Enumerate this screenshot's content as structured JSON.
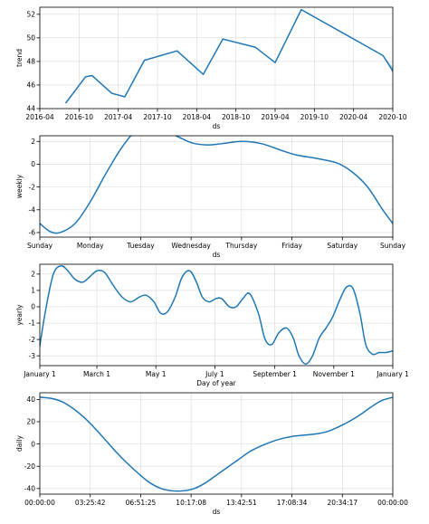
{
  "chart_data": [
    {
      "id": "trend",
      "type": "line",
      "title": "",
      "xlabel": "ds",
      "ylabel": "trend",
      "grid": true,
      "xlim": [
        0,
        54
      ],
      "ylim": [
        44,
        52.6
      ],
      "x_ticks": [
        {
          "v": 0,
          "label": "2016-04"
        },
        {
          "v": 6,
          "label": "2016-10"
        },
        {
          "v": 12,
          "label": "2017-04"
        },
        {
          "v": 18,
          "label": "2017-10"
        },
        {
          "v": 24,
          "label": "2018-04"
        },
        {
          "v": 30,
          "label": "2018-10"
        },
        {
          "v": 36,
          "label": "2019-04"
        },
        {
          "v": 42,
          "label": "2019-10"
        },
        {
          "v": 48,
          "label": "2020-04"
        },
        {
          "v": 54,
          "label": "2020-10"
        }
      ],
      "y_ticks": [
        44,
        46,
        48,
        50,
        52
      ],
      "series": [
        {
          "x": [
            4,
            7,
            8,
            11,
            13,
            16,
            21,
            25,
            28,
            33,
            36,
            40,
            52.5,
            56.5
          ],
          "y": [
            44.5,
            46.7,
            46.8,
            45.3,
            45.0,
            48.1,
            48.9,
            46.9,
            49.9,
            49.2,
            47.9,
            52.4,
            48.5,
            45.0
          ]
        }
      ],
      "uncertainty": {
        "x": [
          52.5,
          55.0,
          57.0
        ],
        "upper": [
          48.5,
          46.9,
          46.0
        ],
        "lower": [
          48.5,
          46.0,
          44.2
        ]
      }
    },
    {
      "id": "weekly",
      "type": "line",
      "title": "",
      "xlabel": "ds",
      "ylabel": "weekly",
      "grid": true,
      "xlim": [
        0,
        7
      ],
      "ylim": [
        -6.4,
        2.5
      ],
      "x_ticks": [
        {
          "v": 0,
          "label": "Sunday"
        },
        {
          "v": 1,
          "label": "Monday"
        },
        {
          "v": 2,
          "label": "Tuesday"
        },
        {
          "v": 3,
          "label": "Wednesday"
        },
        {
          "v": 4,
          "label": "Thursday"
        },
        {
          "v": 5,
          "label": "Friday"
        },
        {
          "v": 6,
          "label": "Saturday"
        },
        {
          "v": 7,
          "label": "Sunday"
        }
      ],
      "y_ticks": [
        -6,
        -4,
        -2,
        0,
        2
      ],
      "series": [
        {
          "x": [
            0,
            0.2,
            0.4,
            0.7,
            1.0,
            1.3,
            1.6,
            1.85,
            2.1,
            2.35,
            2.7,
            3.0,
            3.3,
            3.6,
            4.0,
            4.4,
            4.8,
            5.1,
            5.5,
            5.9,
            6.2,
            6.5,
            6.8,
            7.0
          ],
          "y": [
            -5.2,
            -5.9,
            -6.0,
            -5.2,
            -3.3,
            -0.9,
            1.3,
            2.7,
            3.3,
            3.1,
            2.5,
            1.9,
            1.7,
            1.8,
            2.0,
            1.8,
            1.2,
            0.8,
            0.5,
            0.1,
            -0.7,
            -2.0,
            -4.0,
            -5.2
          ]
        }
      ]
    },
    {
      "id": "yearly",
      "type": "line",
      "title": "",
      "xlabel": "Day of year",
      "ylabel": "yearly",
      "grid": true,
      "xlim": [
        0,
        365
      ],
      "ylim": [
        -3.6,
        2.6
      ],
      "x_ticks": [
        {
          "v": 0,
          "label": "January 1"
        },
        {
          "v": 59,
          "label": "March 1"
        },
        {
          "v": 120,
          "label": "May 1"
        },
        {
          "v": 181,
          "label": "July 1"
        },
        {
          "v": 243,
          "label": "September 1"
        },
        {
          "v": 304,
          "label": "November 1"
        },
        {
          "v": 365,
          "label": "January 1"
        }
      ],
      "y_ticks": [
        -3,
        -2,
        -1,
        0,
        1,
        2
      ],
      "series": [
        {
          "x": [
            0,
            6,
            14,
            22,
            29,
            36,
            44,
            51,
            59,
            67,
            76,
            85,
            94,
            103,
            110,
            118,
            125,
            132,
            140,
            147,
            155,
            162,
            168,
            175,
            182,
            188,
            196,
            203,
            210,
            217,
            226,
            233,
            240,
            247,
            255,
            262,
            268,
            275,
            282,
            289,
            296,
            303,
            310,
            317,
            324,
            331,
            337,
            344,
            351,
            358,
            365
          ],
          "y": [
            -2.4,
            -0.2,
            2.0,
            2.5,
            2.2,
            1.7,
            1.5,
            1.8,
            2.2,
            2.1,
            1.3,
            0.6,
            0.3,
            0.6,
            0.7,
            0.3,
            -0.4,
            -0.3,
            0.6,
            1.8,
            2.2,
            1.5,
            0.6,
            0.3,
            0.5,
            0.5,
            0.0,
            0.0,
            0.5,
            0.8,
            -0.4,
            -2.0,
            -2.3,
            -1.6,
            -1.3,
            -1.9,
            -3.0,
            -3.5,
            -3.0,
            -1.9,
            -1.3,
            -0.6,
            0.4,
            1.2,
            1.1,
            -0.4,
            -2.3,
            -2.9,
            -2.8,
            -2.8,
            -2.7
          ]
        }
      ]
    },
    {
      "id": "daily",
      "type": "line",
      "title": "",
      "xlabel": "ds",
      "ylabel": "daily",
      "grid": true,
      "xlim": [
        0,
        86400
      ],
      "ylim": [
        -45,
        46
      ],
      "x_ticks": [
        {
          "v": 0,
          "label": "00:00:00"
        },
        {
          "v": 12342.857,
          "label": "03:25:42"
        },
        {
          "v": 24685.714,
          "label": "06:51:25"
        },
        {
          "v": 37028.571,
          "label": "10:17:08"
        },
        {
          "v": 49371.429,
          "label": "13:42:51"
        },
        {
          "v": 61714.286,
          "label": "17:08:34"
        },
        {
          "v": 74057.143,
          "label": "20:34:17"
        },
        {
          "v": 86400,
          "label": "00:00:00"
        }
      ],
      "y_ticks": [
        -40,
        -20,
        0,
        20,
        40
      ],
      "series": [
        {
          "x": [
            0,
            2700,
            5400,
            8100,
            10800,
            13500,
            16200,
            18900,
            21600,
            24300,
            27000,
            29700,
            32400,
            35100,
            37800,
            40500,
            43200,
            45900,
            48600,
            51300,
            54000,
            56700,
            59400,
            62100,
            64800,
            67500,
            70200,
            72900,
            75600,
            78300,
            81000,
            83700,
            86400
          ],
          "y": [
            42,
            41,
            38,
            32,
            24,
            14,
            3,
            -8,
            -18,
            -27,
            -35,
            -40,
            -42,
            -42,
            -40,
            -35,
            -28,
            -21,
            -14,
            -7,
            -2,
            2,
            5,
            7,
            8,
            9,
            11,
            15,
            20,
            26,
            33,
            39,
            42
          ]
        }
      ]
    }
  ]
}
